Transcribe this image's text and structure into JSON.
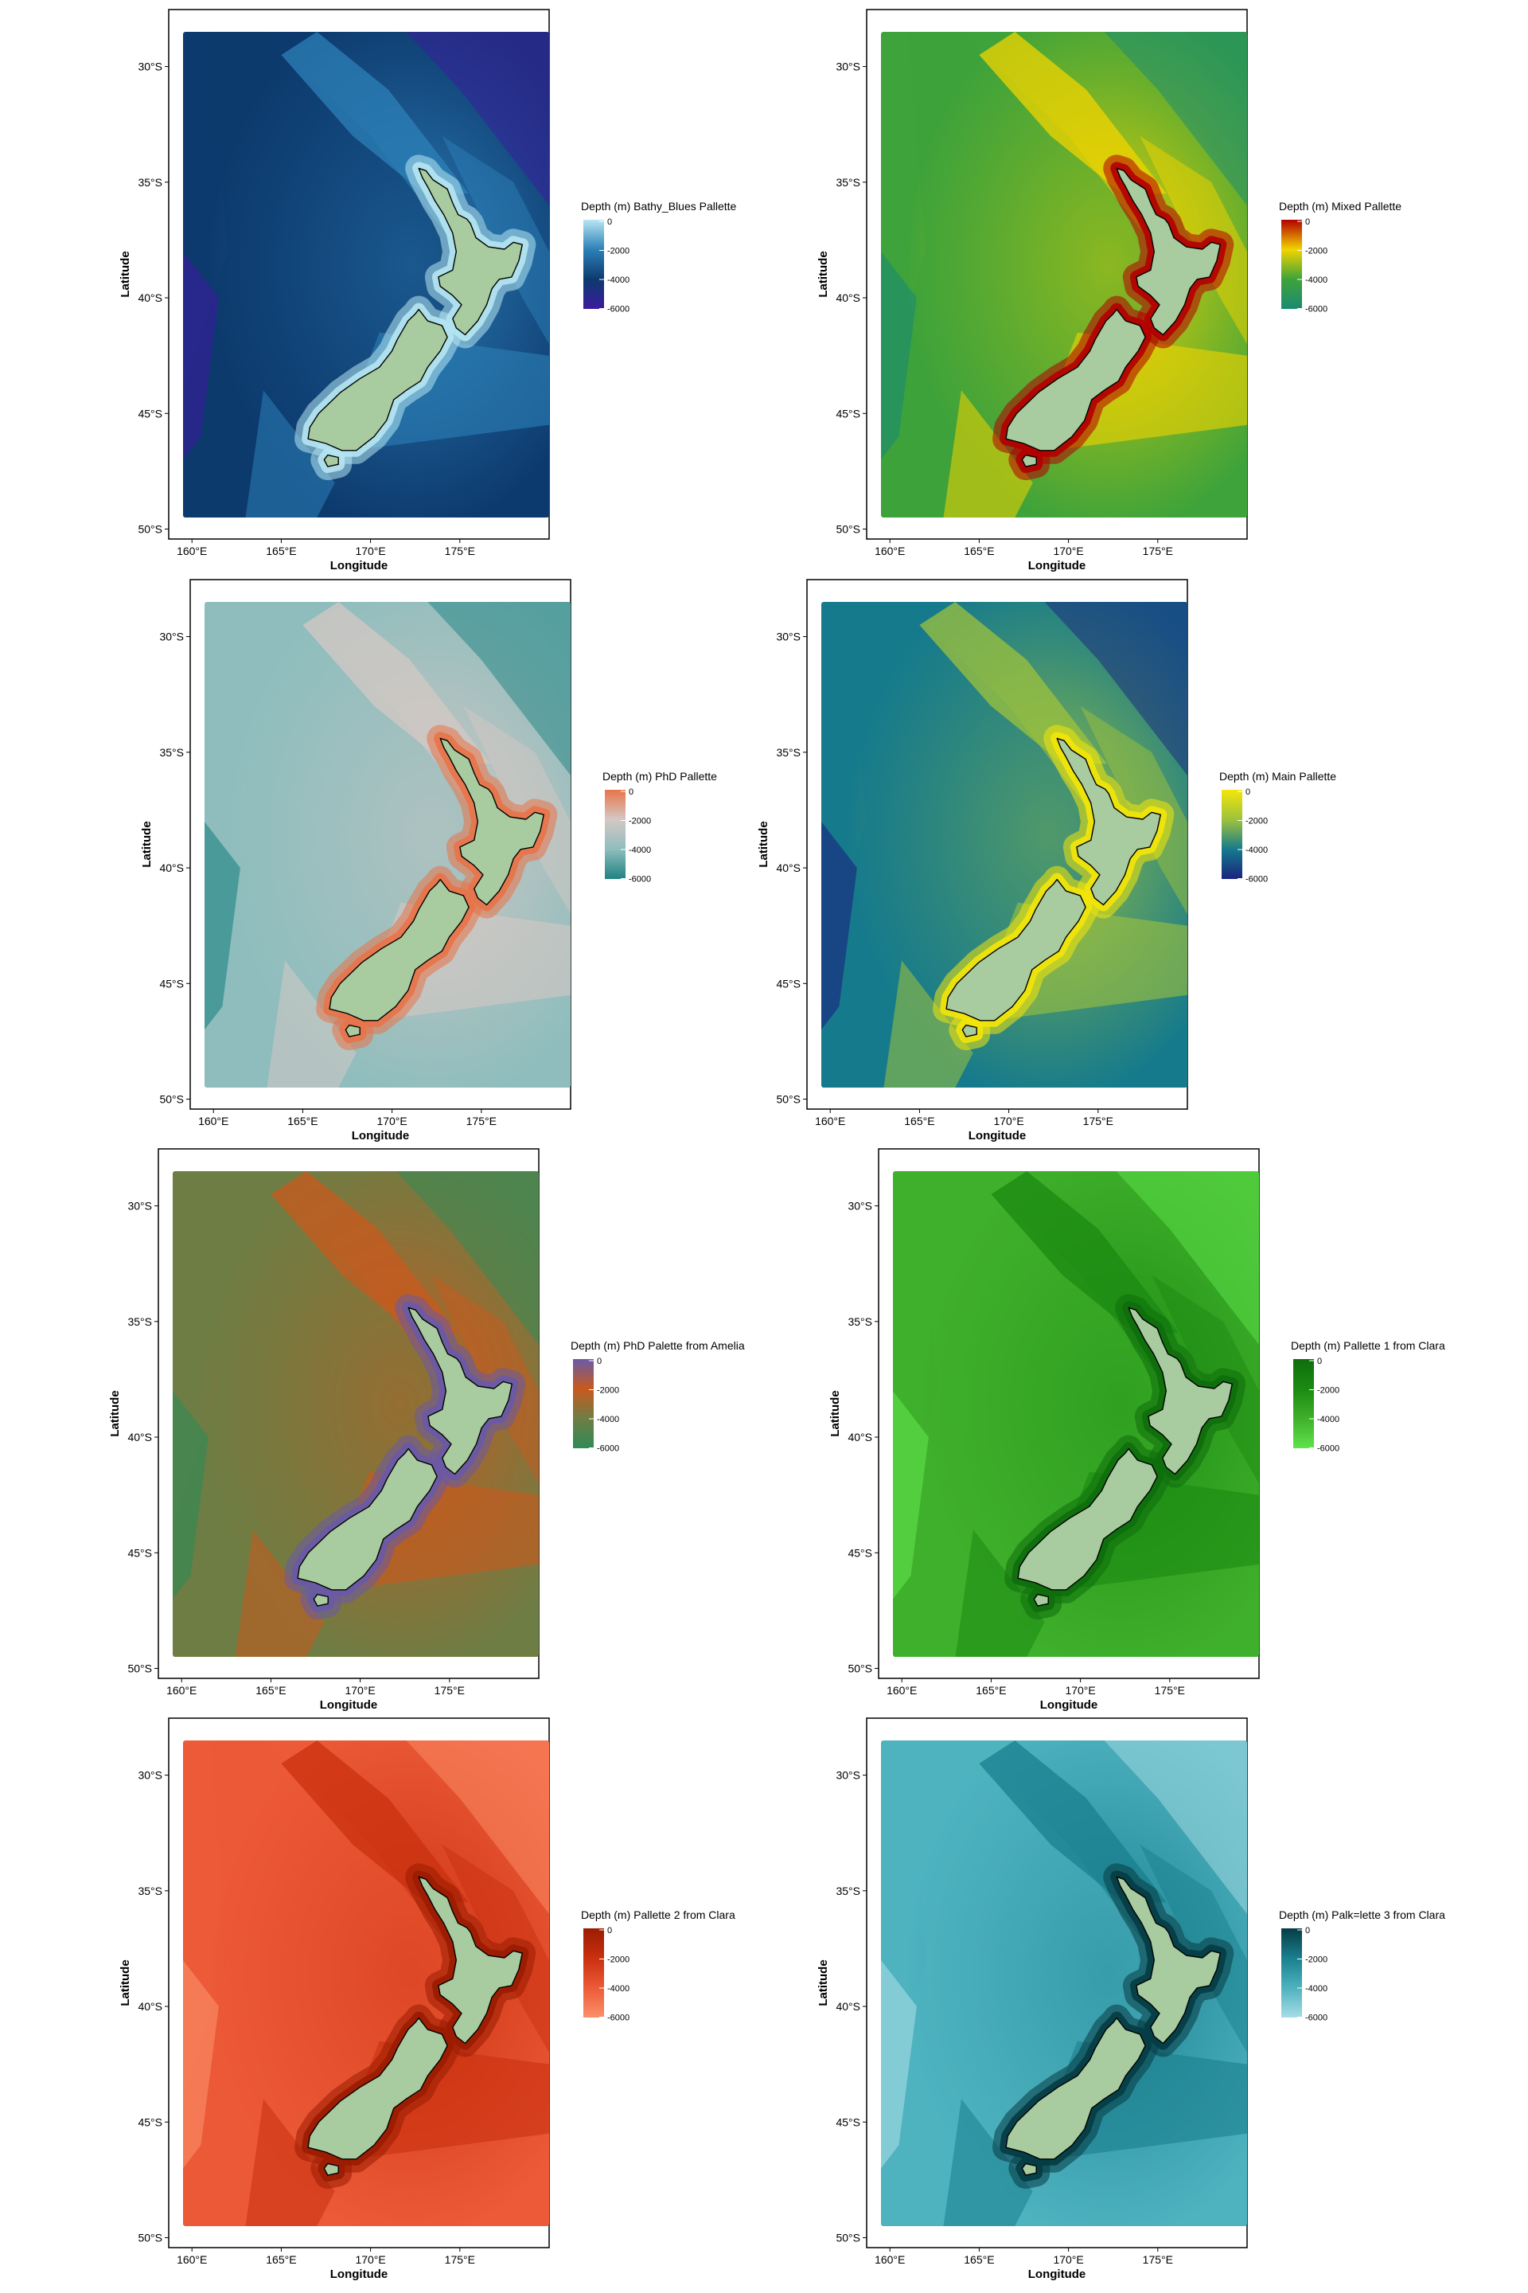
{
  "figure": {
    "x_axis_label": "Longitude",
    "y_axis_label": "Latitude",
    "x_ticks": [
      "160°E",
      "165°E",
      "170°E",
      "175°E"
    ],
    "y_ticks": [
      "30°S",
      "35°S",
      "40°S",
      "45°S",
      "50°S"
    ],
    "legend_ticks": [
      "0",
      "-2000",
      "-4000",
      "-6000"
    ],
    "land_color": "#a8cba0"
  },
  "panels": [
    {
      "legend_title": "Depth (m) Bathy_Blues Pallette",
      "colors": [
        "#3b1a9e",
        "#0d3a6e",
        "#2c80b8",
        "#b6e6f2"
      ]
    },
    {
      "legend_title": "Depth (m) Mixed Pallette",
      "colors": [
        "#1a8a73",
        "#3ea33a",
        "#f2d400",
        "#b30000"
      ]
    },
    {
      "legend_title": "Depth (m) PhD Pallette",
      "colors": [
        "#1e8282",
        "#8fbdbd",
        "#d4c8c4",
        "#e8744a"
      ]
    },
    {
      "legend_title": "Depth (m) Main Pallette",
      "colors": [
        "#1a237e",
        "#157a8c",
        "#9ec23c",
        "#f3e60a"
      ]
    },
    {
      "legend_title": "Depth (m) PhD Palette from Amelia",
      "colors": [
        "#2e8b57",
        "#6e7d44",
        "#c9591d",
        "#6a5aa6"
      ]
    },
    {
      "legend_title": "Depth (m) Pallette 1 from Clara",
      "colors": [
        "#5fe34b",
        "#3fb02b",
        "#1b8a12",
        "#0f6e0c"
      ]
    },
    {
      "legend_title": "Depth (m) Pallette 2 from Clara",
      "colors": [
        "#fb8f6a",
        "#ec5a37",
        "#c9300f",
        "#9b1c02"
      ]
    },
    {
      "legend_title": "Depth (m) Palk=lette 3 from Clara",
      "colors": [
        "#a7dde6",
        "#4eb2bf",
        "#1a7f8e",
        "#063c44"
      ]
    }
  ]
}
